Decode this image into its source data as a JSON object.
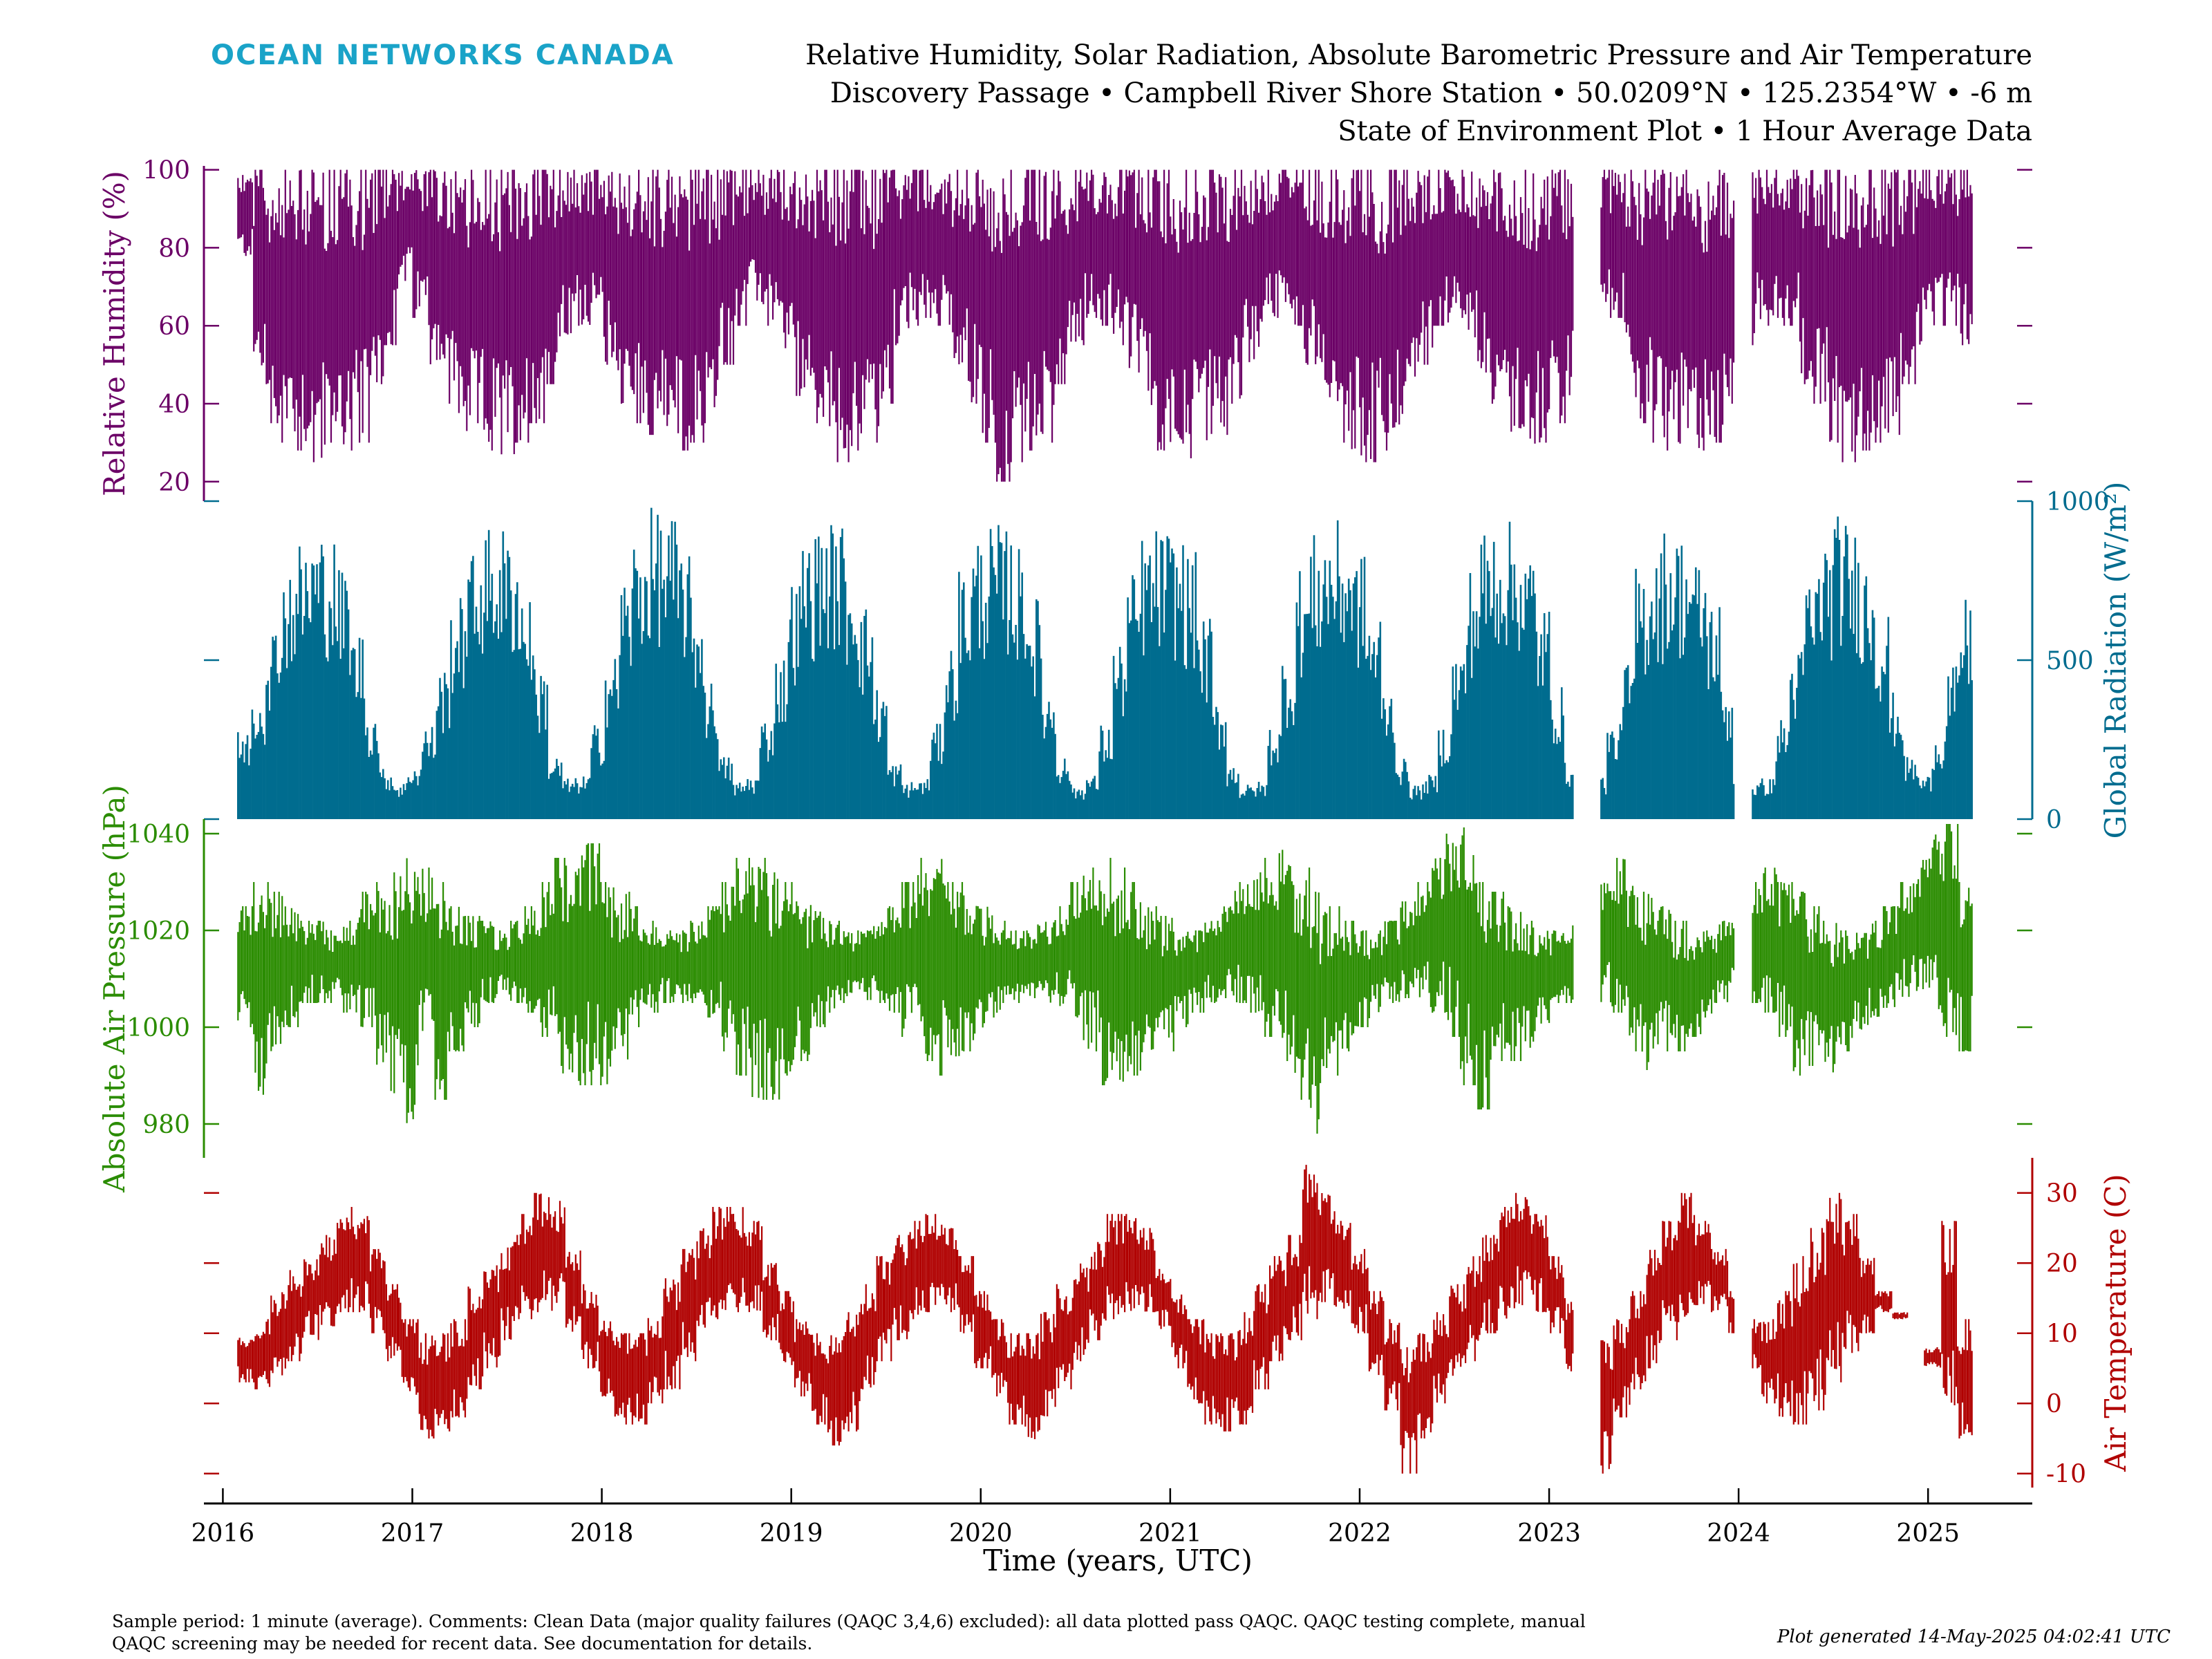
{
  "header": {
    "brand": "OCEAN NETWORKS CANADA",
    "title_lines": [
      "Relative Humidity, Solar Radiation, Absolute Barometric Pressure and Air Temperature",
      "Discovery Passage • Campbell River Shore Station • 50.0209°N • 125.2354°W • -6 m",
      "State of Environment Plot • 1 Hour Average Data"
    ]
  },
  "footer": {
    "note_lines": [
      "Sample period: 1 minute (average). Comments: Clean Data (major quality failures (QAQC 3,4,6) excluded): all data plotted pass QAQC. QAQC testing complete, manual",
      "QAQC screening may be needed for recent data. See documentation for details."
    ],
    "generated": "Plot generated 14-May-2025 04:02:41 UTC"
  },
  "colors": {
    "humidity": "#6b0066",
    "radiation": "#006c8f",
    "pressure": "#2a8c00",
    "temperature": "#b00000",
    "brand": "#1aa3c8"
  },
  "chart_data": {
    "type": "line",
    "xlabel": "Time (years, UTC)",
    "x_ticks": [
      "2016",
      "2017",
      "2018",
      "2019",
      "2020",
      "2021",
      "2022",
      "2023",
      "2024",
      "2025"
    ],
    "xlim": [
      2015.9,
      2025.55
    ],
    "data_start": 2016.08,
    "data_end": 2025.24,
    "gaps": [
      [
        2023.13,
        2023.27
      ],
      [
        2023.98,
        2024.07
      ]
    ],
    "grid": false,
    "panels": [
      {
        "name": "Relative Humidity",
        "ylabel": "Relative Humidity (%)",
        "axis_side": "left",
        "ylim": [
          15,
          101
        ],
        "ticks": [
          20,
          40,
          60,
          80,
          100
        ],
        "color_key": "humidity",
        "series": [
          {
            "name": "Relative Humidity",
            "monthly_min": [
              77,
              45,
              35,
              30,
              28,
              25,
              30,
              28,
              30,
              45,
              55,
              70,
              62,
              50,
              40,
              33,
              30,
              28,
              27,
              30,
              35,
              45,
              55,
              60,
              60,
              50,
              40,
              35,
              32,
              30,
              28,
              30,
              35,
              50,
              60,
              65,
              60,
              52,
              42,
              35,
              30,
              25,
              28,
              30,
              40,
              55,
              60,
              62,
              60,
              48,
              40,
              30,
              20,
              25,
              28,
              30,
              45,
              55,
              62,
              60,
              55,
              48,
              38,
              28,
              28,
              26,
              30,
              32,
              40,
              50,
              60,
              62,
              60,
              50,
              40,
              30,
              28,
              25,
              28,
              30,
              40,
              50,
              60,
              62,
              55,
              48,
              40,
              32,
              28,
              30,
              35,
              38,
              50,
              60,
              62,
              40,
              35,
              30,
              28,
              26,
              28,
              30,
              40,
              55,
              60,
              62,
              60,
              45,
              40,
              30,
              25,
              28,
              30,
              32,
              45,
              55,
              60,
              60,
              55
            ],
            "monthly_max": [
              100,
              100,
              100,
              100,
              100,
              100,
              100,
              100,
              100,
              100,
              100,
              100,
              100,
              100,
              100,
              100,
              100,
              100,
              100,
              100,
              100,
              100,
              100,
              100,
              100,
              100,
              100,
              100,
              100,
              100,
              100,
              100,
              100,
              100,
              100,
              100,
              100,
              100,
              100,
              100,
              100,
              100,
              100,
              100,
              100,
              100,
              100,
              100,
              100,
              100,
              100,
              100,
              100,
              100,
              100,
              100,
              100,
              100,
              100,
              100,
              100,
              100,
              100,
              100,
              100,
              100,
              100,
              100,
              100,
              100,
              100,
              100,
              100,
              100,
              100,
              100,
              100,
              100,
              100,
              100,
              100,
              100,
              100,
              100,
              100,
              100,
              100,
              100,
              100,
              100,
              100,
              100,
              100,
              100,
              100,
              100,
              100,
              100,
              100,
              100,
              100,
              100,
              100,
              100,
              100,
              100,
              100,
              100,
              100,
              100,
              100,
              100,
              100,
              100,
              100,
              100,
              100,
              100,
              100
            ]
          }
        ]
      },
      {
        "name": "Global Radiation",
        "ylabel": "Global Radiation (W/m²)",
        "axis_side": "right",
        "ylim": [
          0,
          1000
        ],
        "ticks": [
          0,
          500,
          1000
        ],
        "color_key": "radiation",
        "series": [
          {
            "name": "Global Radiation",
            "monthly_max": [
              280,
              420,
              620,
              820,
              880,
              920,
              900,
              800,
              600,
              350,
              160,
              120,
              180,
              300,
              480,
              700,
              850,
              920,
              930,
              900,
              740,
              480,
              200,
              130,
              140,
              300,
              520,
              780,
              920,
              980,
              960,
              880,
              700,
              440,
              200,
              120,
              140,
              320,
              520,
              760,
              900,
              950,
              940,
              850,
              680,
              420,
              180,
              120,
              130,
              300,
              560,
              800,
              900,
              930,
              920,
              860,
              700,
              420,
              200,
              110,
              140,
              300,
              560,
              780,
              900,
              920,
              900,
              840,
              640,
              380,
              180,
              110,
              120,
              300,
              520,
              800,
              900,
              940,
              920,
              840,
              660,
              420,
              190,
              110,
              140,
              300,
              540,
              800,
              920,
              960,
              940,
              860,
              680,
              420,
              180,
              120,
              140,
              300,
              500,
              800,
              880,
              920,
              900,
              820,
              700,
              420,
              170,
              120,
              130,
              320,
              540,
              780,
              900,
              960,
              920,
              840,
              660,
              400,
              200,
              140,
              280,
              480,
              700
            ]
          }
        ]
      },
      {
        "name": "Absolute Air Pressure",
        "ylabel": "Absolute Air Pressure (hPa)",
        "axis_side": "left",
        "ylim": [
          973,
          1043
        ],
        "ticks": [
          980,
          1000,
          1020,
          1040
        ],
        "color_key": "pressure",
        "series": [
          {
            "name": "Absolute Air Pressure",
            "monthly_min": [
              1000,
              985,
              995,
              1000,
              1005,
              1005,
              1005,
              1003,
              1000,
              990,
              985,
              978,
              995,
              985,
              995,
              1000,
              1005,
              1006,
              1005,
              1003,
              998,
              990,
              988,
              988,
              988,
              993,
              1000,
              1003,
              1005,
              1005,
              1005,
              1002,
              995,
              990,
              985,
              985,
              990,
              993,
              1000,
              1003,
              1005,
              1005,
              1005,
              1003,
              998,
              993,
              990,
              992,
              995,
              998,
              1002,
              1005,
              1006,
              1005,
              1004,
              1002,
              995,
              988,
              985,
              990,
              993,
              995,
              1000,
              1003,
              1005,
              1006,
              1005,
              1003,
              998,
              993,
              985,
              978,
              990,
              995,
              1000,
              1003,
              1005,
              1006,
              1005,
              1003,
              998,
              988,
              983,
              993,
              993,
              995,
              1000,
              1004,
              1005,
              1006,
              1005,
              1003,
              995,
              990,
              995,
              995,
              998,
              1002,
              1005,
              1006,
              1005,
              1003,
              998,
              990,
              992,
              990,
              995,
              998,
              1002,
              1004,
              1006,
              1005,
              1003,
              998,
              995,
              988,
              995,
              1002
            ],
            "monthly_max": [
              1025,
              1030,
              1028,
              1025,
              1022,
              1022,
              1020,
              1022,
              1028,
              1030,
              1032,
              1035,
              1033,
              1030,
              1025,
              1023,
              1022,
              1020,
              1022,
              1025,
              1030,
              1035,
              1040,
              1038,
              1030,
              1028,
              1025,
              1022,
              1020,
              1020,
              1022,
              1025,
              1030,
              1035,
              1035,
              1032,
              1030,
              1026,
              1024,
              1022,
              1020,
              1020,
              1022,
              1025,
              1030,
              1035,
              1035,
              1030,
              1028,
              1025,
              1022,
              1020,
              1020,
              1022,
              1025,
              1030,
              1033,
              1035,
              1033,
              1030,
              1025,
              1023,
              1020,
              1020,
              1022,
              1025,
              1030,
              1032,
              1035,
              1038,
              1033,
              1028,
              1025,
              1022,
              1020,
              1020,
              1022,
              1026,
              1030,
              1035,
              1040,
              1042,
              1030,
              1028,
              1025,
              1022,
              1020,
              1020,
              1022,
              1025,
              1030,
              1035,
              1030,
              1028,
              1025,
              1022,
              1020,
              1020,
              1022,
              1025,
              1030,
              1033,
              1030,
              1028,
              1025,
              1022,
              1020,
              1020,
              1022,
              1025,
              1030,
              1035,
              1040,
              1042,
              1030
            ]
          }
        ]
      },
      {
        "name": "Air Temperature",
        "ylabel": "Air Temperature (C)",
        "axis_side": "right",
        "ylim": [
          -12,
          35
        ],
        "ticks": [
          -10,
          0,
          10,
          20,
          30
        ],
        "color_key": "temperature",
        "series": [
          {
            "name": "Air Temperature",
            "monthly_min": [
              3,
              2,
              4,
              6,
              9,
              11,
              13,
              13,
              10,
              6,
              1,
              -5,
              -4,
              -2,
              2,
              5,
              9,
              12,
              13,
              13,
              10,
              5,
              1,
              -3,
              -3,
              0,
              2,
              6,
              10,
              12,
              13,
              13,
              9,
              5,
              1,
              -3,
              -6,
              -4,
              2,
              6,
              9,
              12,
              13,
              13,
              10,
              5,
              1,
              -3,
              -6,
              -2,
              2,
              6,
              9,
              12,
              13,
              13,
              10,
              5,
              0,
              -3,
              -4,
              -3,
              2,
              6,
              9,
              12,
              14,
              13,
              10,
              4,
              -1,
              -10,
              -5,
              0,
              3,
              6,
              10,
              12,
              14,
              13,
              10,
              4,
              -2,
              -10,
              -2,
              2,
              5,
              9,
              12,
              14,
              13,
              10,
              5,
              0,
              -2,
              -3,
              -1,
              3,
              7,
              10,
              13,
              13,
              10,
              5,
              -1,
              -5,
              -5,
              -2,
              3,
              7
            ],
            "monthly_max": [
              10,
              12,
              16,
              19,
              21,
              24,
              28,
              27,
              22,
              17,
              12,
              10,
              10,
              12,
              17,
              20,
              23,
              27,
              30,
              29,
              22,
              17,
              12,
              10,
              10,
              13,
              18,
              22,
              25,
              28,
              28,
              26,
              20,
              16,
              12,
              10,
              10,
              13,
              17,
              21,
              24,
              26,
              27,
              25,
              21,
              16,
              12,
              10,
              10,
              13,
              17,
              20,
              23,
              27,
              27,
              25,
              20,
              16,
              12,
              10,
              10,
              13,
              17,
              21,
              24,
              34,
              30,
              26,
              22,
              16,
              12,
              8,
              10,
              13,
              17,
              21,
              24,
              28,
              30,
              27,
              21,
              15,
              11,
              9,
              12,
              16,
              22,
              26,
              30,
              26,
              22,
              16,
              12,
              12,
              16,
              21,
              25,
              30,
              27,
              21,
              16,
              12,
              10,
              8,
              26,
              12
            ]
          }
        ]
      }
    ]
  }
}
